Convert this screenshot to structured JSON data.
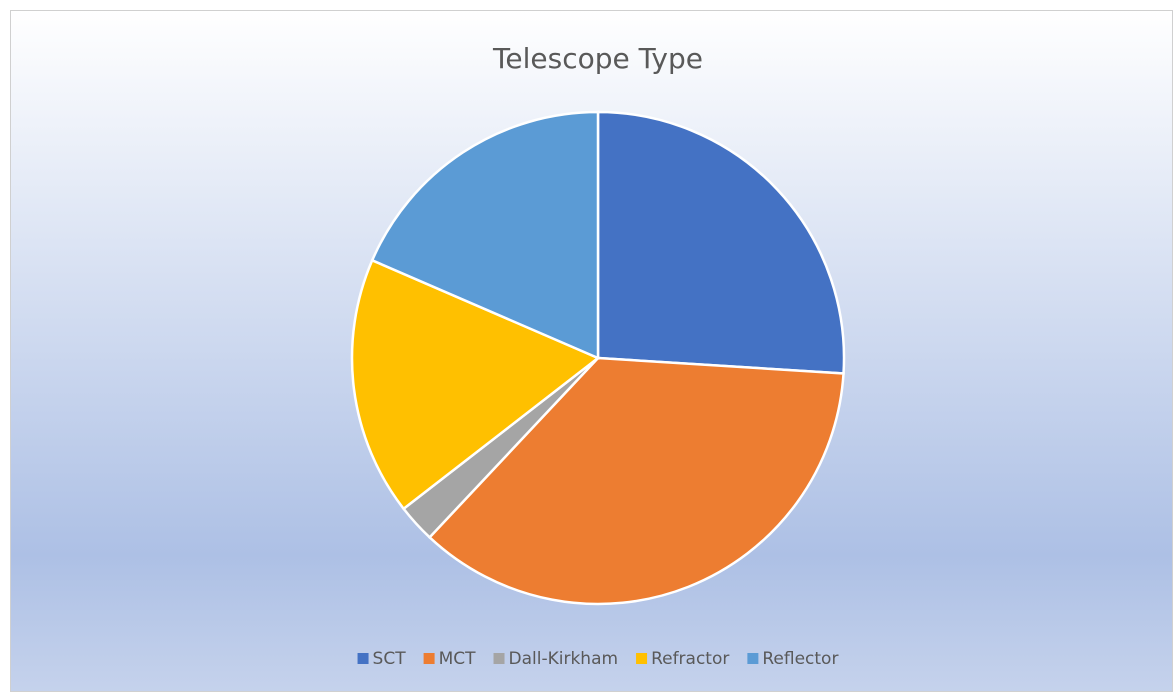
{
  "chart_data": {
    "type": "pie",
    "title": "Telescope Type",
    "categories": [
      "SCT",
      "MCT",
      "Dall-Kirkham",
      "Refractor",
      "Reflector"
    ],
    "values": [
      26,
      36,
      2.5,
      17,
      18.5
    ],
    "colors": [
      "#4472c4",
      "#ed7d31",
      "#a5a5a5",
      "#ffc000",
      "#5b9bd5"
    ],
    "legend": "bottom"
  }
}
